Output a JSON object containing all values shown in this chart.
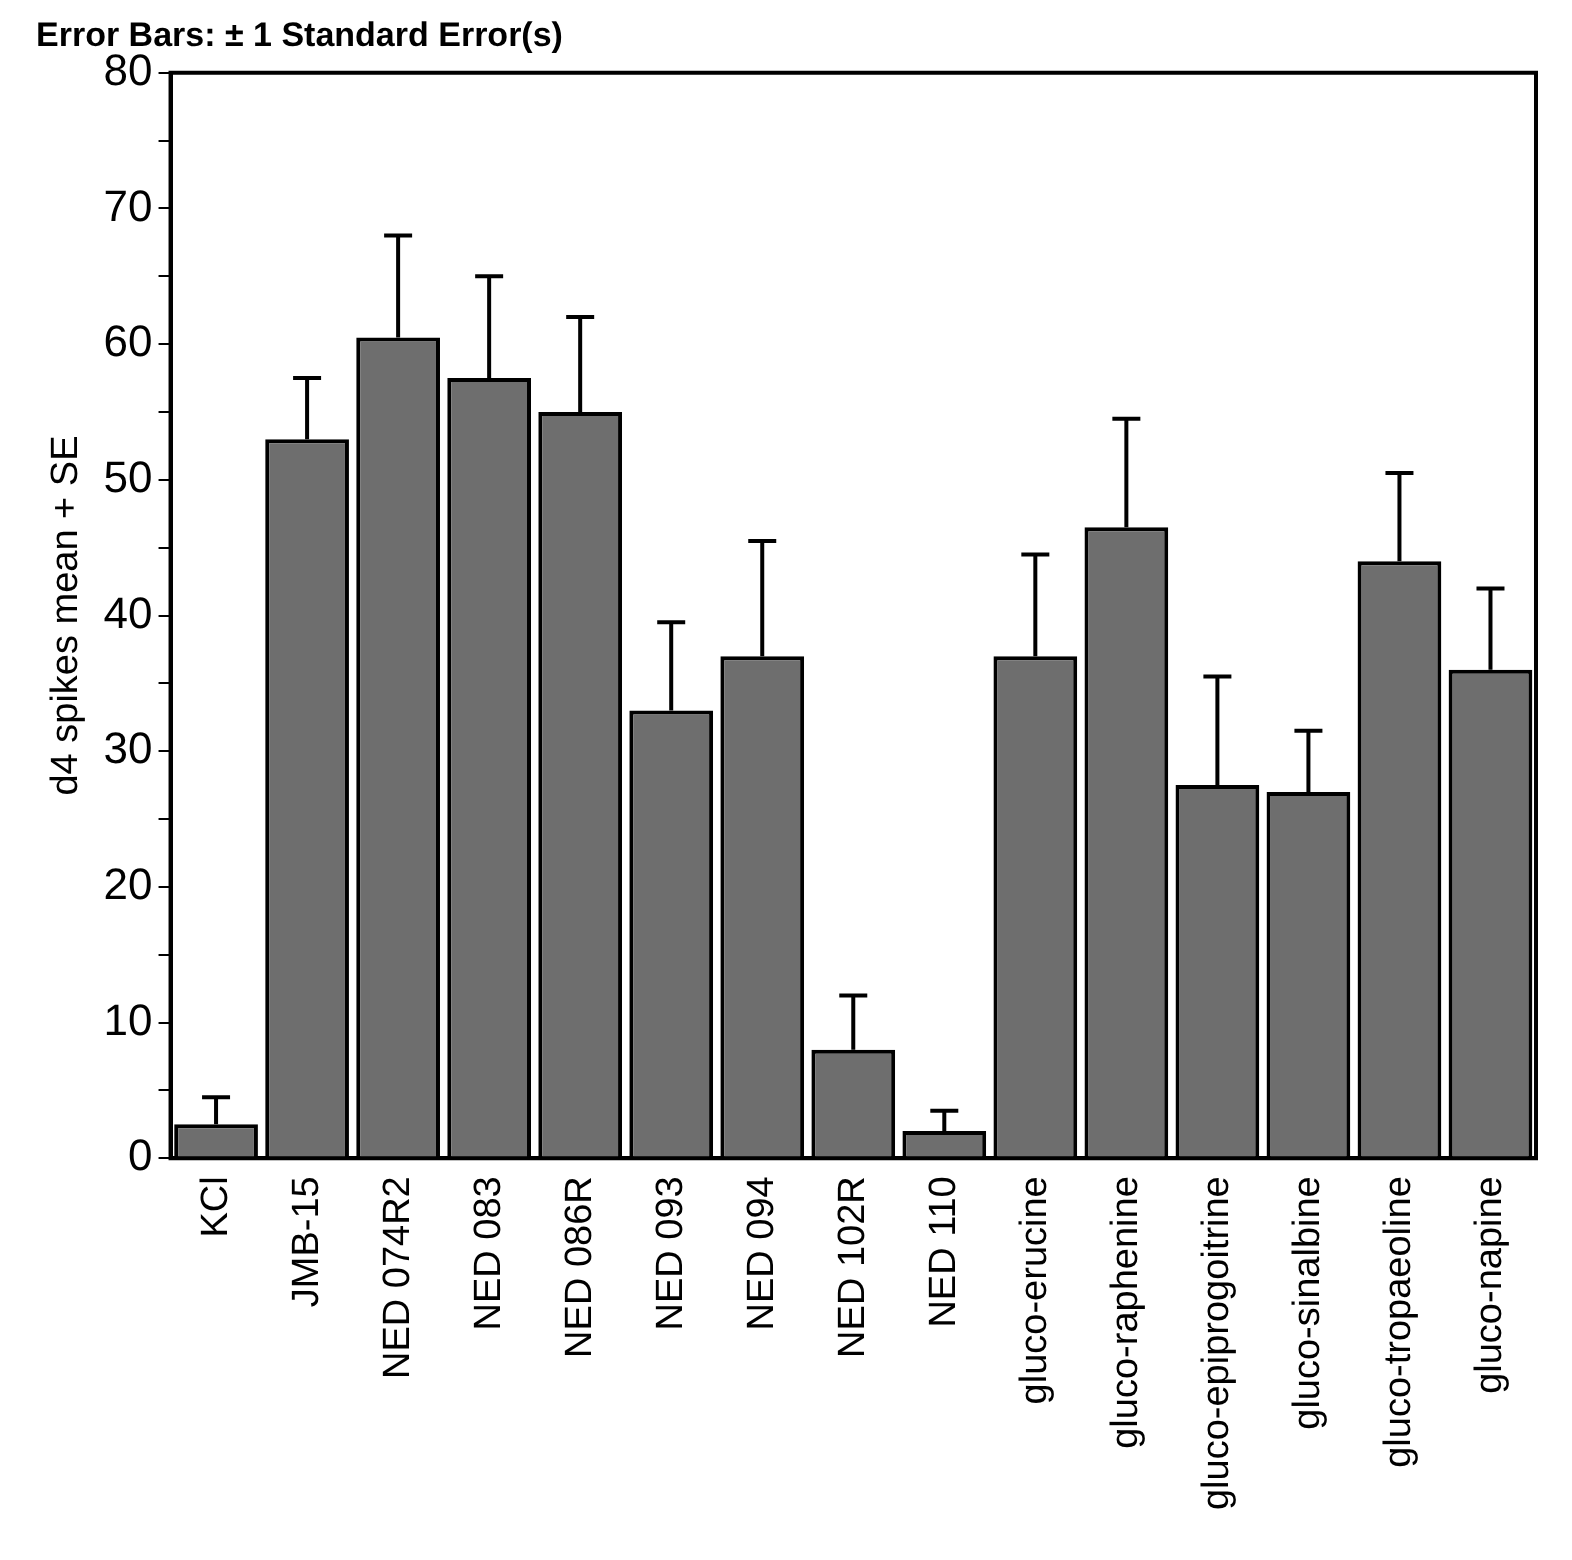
{
  "chart_data": {
    "type": "bar",
    "title": "Error Bars: ± 1 Standard Error(s)",
    "ylabel": "d4 spikes mean + SE",
    "categories": [
      "KCl",
      "JMB-15",
      "NED 074R2",
      "NED 083",
      "NED 086R",
      "NED 093",
      "NED 094",
      "NED 102R",
      "NED 110",
      "gluco-erucine",
      "gluco-raphenine",
      "gluco-epiprogoitrine",
      "gluco-sinalbine",
      "gluco-tropaeoline",
      "gluco-napine"
    ],
    "values": [
      2.5,
      53,
      60.5,
      57.5,
      55,
      33,
      37,
      8,
      2,
      37,
      46.5,
      27.5,
      27,
      44,
      36
    ],
    "errors": [
      2,
      4.5,
      7.5,
      7.5,
      7,
      6.5,
      8.5,
      4,
      1.5,
      7.5,
      8,
      8,
      4.5,
      6.5,
      6
    ],
    "color": "#6e6e6e",
    "ylim": [
      0,
      80
    ],
    "yticks": [
      0,
      {
        "value": 5,
        "label": null
      },
      10,
      {
        "value": 15,
        "label": null
      },
      20,
      {
        "value": 25,
        "label": null
      },
      30,
      {
        "value": 35,
        "label": null
      },
      40,
      {
        "value": 45,
        "label": null
      },
      50,
      {
        "value": 55,
        "label": null
      },
      60,
      {
        "value": 65,
        "label": null
      },
      70,
      {
        "value": 75,
        "label": null
      },
      80
    ],
    "grid": false,
    "legend": false
  }
}
